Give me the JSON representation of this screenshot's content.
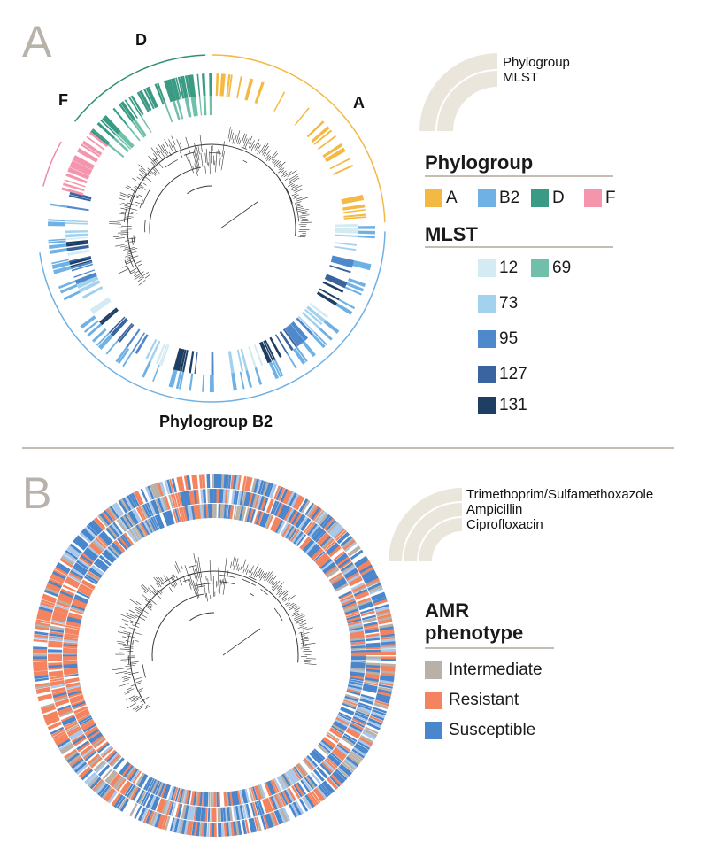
{
  "panel_a": {
    "letter": "A",
    "group_labels": {
      "D": "D",
      "F": "F",
      "A": "A",
      "B2": "Phylogroup B2"
    },
    "ring_key": {
      "rings": [
        "Phylogroup",
        "MLST"
      ]
    },
    "legend_phylogroup": {
      "title": "Phylogroup",
      "items": [
        {
          "label": "A",
          "color": "#f4b942"
        },
        {
          "label": "B2",
          "color": "#6fb1e4"
        },
        {
          "label": "D",
          "color": "#3a9a84"
        },
        {
          "label": "F",
          "color": "#f595ad"
        }
      ]
    },
    "legend_mlst": {
      "title": "MLST",
      "items": [
        {
          "label": "12",
          "color": "#d4ebf3"
        },
        {
          "label": "69",
          "color": "#6fbfaa"
        },
        {
          "label": "73",
          "color": "#a3d2ef"
        },
        {
          "label": "95",
          "color": "#4f89cb"
        },
        {
          "label": "127",
          "color": "#3a64a0"
        },
        {
          "label": "131",
          "color": "#1e3f63"
        }
      ]
    }
  },
  "panel_b": {
    "letter": "B",
    "ring_key": {
      "rings": [
        "Trimethoprim/Sulfamethoxazole",
        "Ampicillin",
        "Ciprofloxacin"
      ]
    },
    "legend_amr": {
      "title_line1": "AMR",
      "title_line2": "phenotype",
      "items": [
        {
          "label": "Intermediate",
          "color": "#b9b1a8"
        },
        {
          "label": "Resistant",
          "color": "#f4845f"
        },
        {
          "label": "Susceptible",
          "color": "#4a86cb"
        }
      ]
    }
  },
  "colors": {
    "tree": "#3a3a3a",
    "divider": "#c3bdb4",
    "key_arc": "#ebe6dc",
    "letter": "#b8b2aa"
  }
}
